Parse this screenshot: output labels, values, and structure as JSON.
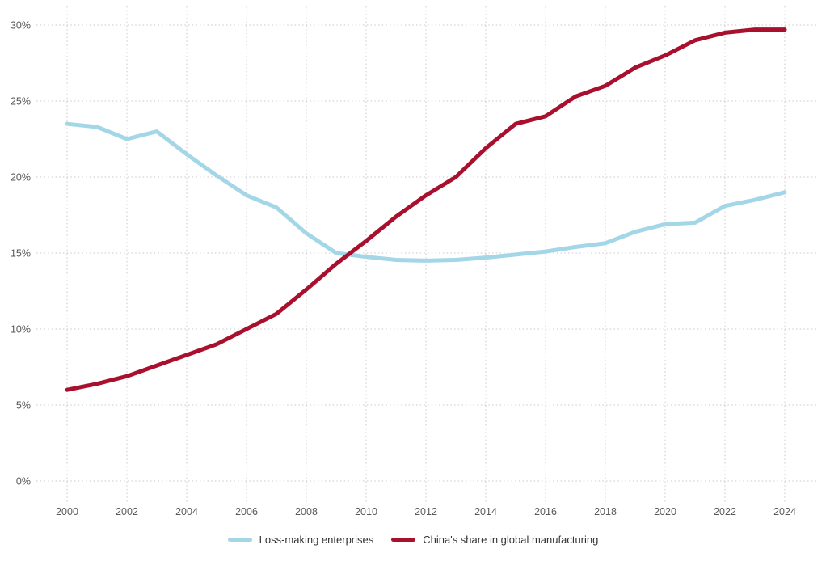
{
  "chart_data": {
    "type": "line",
    "x": [
      2000,
      2001,
      2002,
      2003,
      2004,
      2005,
      2006,
      2007,
      2008,
      2009,
      2010,
      2011,
      2012,
      2013,
      2014,
      2015,
      2016,
      2017,
      2018,
      2019,
      2020,
      2021,
      2022,
      2023,
      2024
    ],
    "series": [
      {
        "name": "Loss-making enterprises",
        "color": "#a3d6e7",
        "values": [
          23.5,
          23.3,
          22.5,
          23.0,
          21.5,
          20.1,
          18.8,
          18.0,
          16.3,
          15.0,
          14.75,
          14.55,
          14.5,
          14.55,
          14.7,
          14.9,
          15.1,
          15.4,
          15.65,
          16.4,
          16.9,
          17.0,
          18.1,
          18.5,
          19.0
        ]
      },
      {
        "name": "China's share in global manufacturing",
        "color": "#a8102e",
        "values": [
          6.0,
          6.4,
          6.9,
          7.6,
          8.3,
          9.0,
          10.0,
          11.0,
          12.6,
          14.3,
          15.8,
          17.4,
          18.8,
          20.0,
          21.9,
          23.5,
          24.0,
          25.3,
          26.0,
          27.2,
          28.0,
          29.0,
          29.5,
          29.7,
          29.7
        ]
      }
    ],
    "title": "",
    "xlabel": "",
    "ylabel": "",
    "ylim": [
      0,
      30
    ],
    "yticks": [
      0,
      5,
      10,
      15,
      20,
      25,
      30
    ],
    "ytick_labels": [
      "0%",
      "5%",
      "10%",
      "15%",
      "20%",
      "25%",
      "30%"
    ],
    "xticks": [
      2000,
      2002,
      2004,
      2006,
      2008,
      2010,
      2012,
      2014,
      2016,
      2018,
      2020,
      2022,
      2024
    ],
    "grid": "dotted horizontal and vertical",
    "legend_position": "bottom-center"
  },
  "colors": {
    "background": "#ffffff",
    "gridline": "#c9c9c9",
    "axis_text": "#595959",
    "legend_text": "#333333",
    "series_blue": "#a3d6e7",
    "series_red": "#a8102e"
  }
}
